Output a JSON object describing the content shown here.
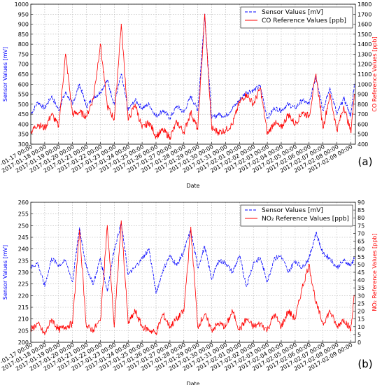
{
  "chart_data": [
    {
      "type": "line",
      "panel_label": "(a)",
      "xlabel": "Date",
      "x_ticks": [
        "2017-01-17 00:00",
        "2017-01-18 00:00",
        "2017-01-19 00:00",
        "2017-01-20 00:00",
        "2017-01-21 00:00",
        "2017-01-22 00:00",
        "2017-01-23 00:00",
        "2017-01-24 00:00",
        "2017-01-25 00:00",
        "2017-01-26 00:00",
        "2017-01-27 00:00",
        "2017-01-28 00:00",
        "2017-01-29 00:00",
        "2017-01-30 00:00",
        "2017-01-31 00:00",
        "2017-02-01 00:00",
        "2017-02-02 00:00",
        "2017-02-03 00:00",
        "2017-02-04 00:00",
        "2017-02-05 00:00",
        "2017-02-06 00:00",
        "2017-02-07 00:00",
        "2017-02-08 00:00",
        "2017-02-09 00:00"
      ],
      "ylabel_left": "Sensor Values [mV]",
      "ylabel_right": "CO Reference Values [ppb]",
      "ylim_left": [
        300,
        1000
      ],
      "yticks_left": [
        300,
        350,
        400,
        450,
        500,
        550,
        600,
        650,
        700,
        750,
        800,
        850,
        900,
        950,
        1000
      ],
      "ylim_right": [
        400,
        1800
      ],
      "yticks_right": [
        400,
        500,
        600,
        700,
        800,
        900,
        1000,
        1100,
        1200,
        1300,
        1400,
        1500,
        1600,
        1700,
        1800
      ],
      "grid": true,
      "legend_position": "top-right",
      "series": [
        {
          "name": "Sensor Values [mV]",
          "axis": "left",
          "color": "#0000ff",
          "style": "dashed",
          "x": [
            "2017-01-17",
            "2017-01-17 12:00",
            "2017-01-18",
            "2017-01-18 12:00",
            "2017-01-19",
            "2017-01-19 12:00",
            "2017-01-20",
            "2017-01-20 12:00",
            "2017-01-21",
            "2017-01-21 12:00",
            "2017-01-22",
            "2017-01-22 12:00",
            "2017-01-23",
            "2017-01-23 12:00",
            "2017-01-24",
            "2017-01-24 12:00",
            "2017-01-25",
            "2017-01-25 12:00",
            "2017-01-26",
            "2017-01-26 12:00",
            "2017-01-27",
            "2017-01-27 12:00",
            "2017-01-28",
            "2017-01-28 12:00",
            "2017-01-29",
            "2017-01-29 12:00",
            "2017-01-30",
            "2017-01-30 12:00",
            "2017-01-31",
            "2017-01-31 12:00",
            "2017-02-01",
            "2017-02-01 12:00",
            "2017-02-02",
            "2017-02-02 12:00",
            "2017-02-03",
            "2017-02-03 12:00",
            "2017-02-04",
            "2017-02-04 12:00",
            "2017-02-05",
            "2017-02-05 12:00",
            "2017-02-06",
            "2017-02-06 12:00",
            "2017-02-07",
            "2017-02-07 12:00",
            "2017-02-08",
            "2017-02-08 12:00",
            "2017-02-09",
            "2017-02-09 06:00"
          ],
          "values": [
            450,
            510,
            480,
            540,
            470,
            560,
            500,
            600,
            490,
            530,
            560,
            620,
            500,
            650,
            470,
            520,
            480,
            500,
            440,
            470,
            430,
            490,
            460,
            540,
            470,
            950,
            430,
            450,
            440,
            480,
            520,
            560,
            570,
            590,
            430,
            480,
            470,
            500,
            480,
            520,
            500,
            640,
            470,
            580,
            450,
            530,
            440,
            600
          ]
        },
        {
          "name": "CO Reference Values [ppb]",
          "axis": "right",
          "color": "#ff0000",
          "style": "solid",
          "x": [
            "2017-01-17",
            "2017-01-17 12:00",
            "2017-01-18",
            "2017-01-18 12:00",
            "2017-01-19",
            "2017-01-19 12:00",
            "2017-01-20",
            "2017-01-20 12:00",
            "2017-01-21",
            "2017-01-21 12:00",
            "2017-01-22",
            "2017-01-22 12:00",
            "2017-01-23",
            "2017-01-23 12:00",
            "2017-01-24",
            "2017-01-24 12:00",
            "2017-01-25",
            "2017-01-25 12:00",
            "2017-01-26",
            "2017-01-26 12:00",
            "2017-01-27",
            "2017-01-27 12:00",
            "2017-01-28",
            "2017-01-28 12:00",
            "2017-01-29",
            "2017-01-29 12:00",
            "2017-01-30",
            "2017-01-30 12:00",
            "2017-01-31",
            "2017-01-31 12:00",
            "2017-02-01",
            "2017-02-01 12:00",
            "2017-02-02",
            "2017-02-02 12:00",
            "2017-02-03",
            "2017-02-03 12:00",
            "2017-02-04",
            "2017-02-04 12:00",
            "2017-02-05",
            "2017-02-05 12:00",
            "2017-02-06",
            "2017-02-06 12:00",
            "2017-02-07",
            "2017-02-07 12:00",
            "2017-02-08",
            "2017-02-08 12:00",
            "2017-02-09",
            "2017-02-09 06:00"
          ],
          "values": [
            520,
            600,
            560,
            700,
            580,
            1300,
            700,
            720,
            680,
            860,
            1400,
            780,
            650,
            1600,
            640,
            800,
            560,
            620,
            480,
            540,
            470,
            620,
            520,
            720,
            550,
            1700,
            560,
            520,
            540,
            600,
            820,
            900,
            800,
            960,
            500,
            620,
            560,
            700,
            600,
            720,
            680,
            1100,
            560,
            900,
            540,
            780,
            520,
            900
          ]
        }
      ]
    },
    {
      "type": "line",
      "panel_label": "(b)",
      "xlabel": "Date",
      "x_ticks": [
        "2017-01-17 00:00",
        "2017-01-18 00:00",
        "2017-01-19 00:00",
        "2017-01-20 00:00",
        "2017-01-21 00:00",
        "2017-01-22 00:00",
        "2017-01-23 00:00",
        "2017-01-24 00:00",
        "2017-01-25 00:00",
        "2017-01-26 00:00",
        "2017-01-27 00:00",
        "2017-01-28 00:00",
        "2017-01-29 00:00",
        "2017-01-30 00:00",
        "2017-01-31 00:00",
        "2017-02-01 00:00",
        "2017-02-02 00:00",
        "2017-02-03 00:00",
        "2017-02-04 00:00",
        "2017-02-05 00:00",
        "2017-02-06 00:00",
        "2017-02-07 00:00",
        "2017-02-08 00:00",
        "2017-02-09 00:00"
      ],
      "ylabel_left": "Sensor Values [mV]",
      "ylabel_right": "NO₂ Reference Values [ppb]",
      "ylim_left": [
        200,
        260
      ],
      "yticks_left": [
        200,
        205,
        210,
        215,
        220,
        225,
        230,
        235,
        240,
        245,
        250,
        255,
        260
      ],
      "ylim_right": [
        0,
        90
      ],
      "yticks_right": [
        0,
        5,
        10,
        15,
        20,
        25,
        30,
        35,
        40,
        45,
        50,
        55,
        60,
        65,
        70,
        75,
        80,
        85,
        90
      ],
      "grid": true,
      "legend_position": "top-right",
      "series": [
        {
          "name": "Sensor Values [mV]",
          "axis": "left",
          "color": "#0000ff",
          "style": "dashed",
          "x": [
            "2017-01-17",
            "2017-01-17 12:00",
            "2017-01-18",
            "2017-01-18 12:00",
            "2017-01-19",
            "2017-01-19 12:00",
            "2017-01-20",
            "2017-01-20 12:00",
            "2017-01-21",
            "2017-01-21 12:00",
            "2017-01-22",
            "2017-01-22 12:00",
            "2017-01-23",
            "2017-01-23 12:00",
            "2017-01-24",
            "2017-01-24 12:00",
            "2017-01-25",
            "2017-01-25 12:00",
            "2017-01-26",
            "2017-01-26 12:00",
            "2017-01-27",
            "2017-01-27 12:00",
            "2017-01-28",
            "2017-01-28 12:00",
            "2017-01-29",
            "2017-01-29 12:00",
            "2017-01-30",
            "2017-01-30 12:00",
            "2017-01-31",
            "2017-01-31 12:00",
            "2017-02-01",
            "2017-02-01 12:00",
            "2017-02-02",
            "2017-02-02 12:00",
            "2017-02-03",
            "2017-02-03 12:00",
            "2017-02-04",
            "2017-02-04 12:00",
            "2017-02-05",
            "2017-02-05 12:00",
            "2017-02-06",
            "2017-02-06 12:00",
            "2017-02-07",
            "2017-02-07 12:00",
            "2017-02-08",
            "2017-02-08 12:00",
            "2017-02-09",
            "2017-02-09 06:00"
          ],
          "values": [
            232,
            234,
            224,
            236,
            233,
            235,
            226,
            249,
            232,
            225,
            236,
            222,
            240,
            251,
            229,
            232,
            236,
            240,
            221,
            231,
            237,
            233,
            239,
            248,
            232,
            241,
            227,
            235,
            234,
            230,
            237,
            224,
            234,
            236,
            226,
            236,
            237,
            230,
            235,
            232,
            236,
            247,
            238,
            236,
            232,
            235,
            233,
            236
          ]
        },
        {
          "name": "NO₂ Reference Values [ppb]",
          "axis": "right",
          "color": "#ff0000",
          "style": "solid",
          "x": [
            "2017-01-17",
            "2017-01-17 12:00",
            "2017-01-18",
            "2017-01-18 12:00",
            "2017-01-19",
            "2017-01-19 12:00",
            "2017-01-20",
            "2017-01-20 12:00",
            "2017-01-21",
            "2017-01-21 12:00",
            "2017-01-22",
            "2017-01-22 12:00",
            "2017-01-23",
            "2017-01-23 12:00",
            "2017-01-24",
            "2017-01-24 12:00",
            "2017-01-25",
            "2017-01-25 12:00",
            "2017-01-26",
            "2017-01-26 12:00",
            "2017-01-27",
            "2017-01-27 12:00",
            "2017-01-28",
            "2017-01-28 12:00",
            "2017-01-29",
            "2017-01-29 12:00",
            "2017-01-30",
            "2017-01-30 12:00",
            "2017-01-31",
            "2017-01-31 12:00",
            "2017-02-01",
            "2017-02-01 12:00",
            "2017-02-02",
            "2017-02-02 12:00",
            "2017-02-03",
            "2017-02-03 12:00",
            "2017-02-04",
            "2017-02-04 12:00",
            "2017-02-05",
            "2017-02-05 12:00",
            "2017-02-06",
            "2017-02-06 12:00",
            "2017-02-07",
            "2017-02-07 12:00",
            "2017-02-08",
            "2017-02-08 12:00",
            "2017-02-09",
            "2017-02-09 06:00"
          ],
          "values": [
            8,
            12,
            5,
            15,
            8,
            10,
            12,
            72,
            10,
            8,
            14,
            75,
            10,
            78,
            12,
            20,
            10,
            8,
            6,
            18,
            10,
            15,
            20,
            74,
            10,
            18,
            8,
            12,
            10,
            20,
            8,
            15,
            10,
            12,
            8,
            18,
            10,
            20,
            15,
            35,
            50,
            25,
            12,
            20,
            10,
            15,
            8,
            30
          ]
        }
      ]
    }
  ]
}
